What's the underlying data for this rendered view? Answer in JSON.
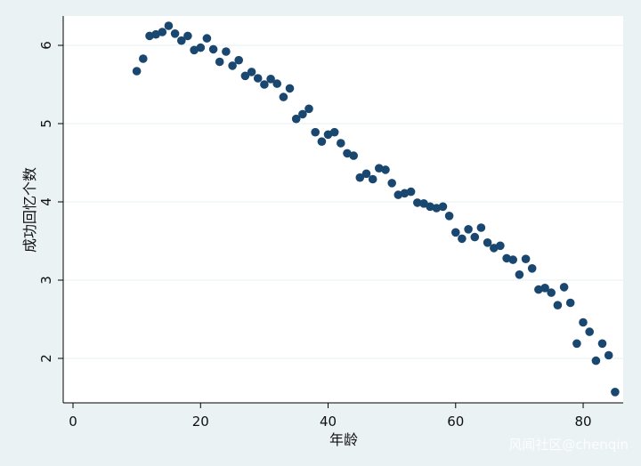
{
  "colors": {
    "background": "#eaf2f3",
    "plot_area": "#ffffff",
    "grid": "#eaf2f3",
    "marker": "#1a476f",
    "axis": "#000000"
  },
  "watermark": "风闻社区@chenqin",
  "chart_data": {
    "type": "scatter",
    "title": "",
    "xlabel": "年龄",
    "ylabel": "成功回忆个数",
    "xlim": [
      0,
      86
    ],
    "ylim": [
      1.5,
      6.4
    ],
    "x_ticks": [
      0,
      20,
      40,
      60,
      80
    ],
    "y_ticks": [
      2,
      3,
      4,
      5,
      6
    ],
    "grid": "horizontal",
    "legend": "none",
    "series": [
      {
        "x": [
          10,
          11,
          12,
          13,
          14,
          15,
          16,
          17,
          18,
          19,
          20,
          21,
          22,
          23,
          24,
          25,
          26,
          27,
          28,
          29,
          30,
          31,
          32,
          33,
          34,
          35,
          36,
          37,
          38,
          39,
          40,
          41,
          42,
          43,
          44,
          45,
          46,
          47,
          48,
          49,
          50,
          51,
          52,
          53,
          54,
          55,
          56,
          57,
          58,
          59,
          60,
          61,
          62,
          63,
          64,
          65,
          66,
          67,
          68,
          69,
          70,
          71,
          72,
          73,
          74,
          75,
          76,
          77,
          78,
          79,
          80,
          81,
          82,
          83,
          84,
          85
        ],
        "y": [
          5.67,
          5.83,
          6.12,
          6.14,
          6.17,
          6.25,
          6.15,
          6.06,
          6.12,
          5.94,
          5.97,
          6.09,
          5.95,
          5.79,
          5.92,
          5.74,
          5.81,
          5.61,
          5.66,
          5.58,
          5.5,
          5.57,
          5.51,
          5.34,
          5.45,
          5.06,
          5.12,
          5.19,
          4.89,
          4.77,
          4.86,
          4.89,
          4.75,
          4.62,
          4.59,
          4.31,
          4.36,
          4.29,
          4.43,
          4.41,
          4.24,
          4.09,
          4.11,
          4.13,
          3.99,
          3.98,
          3.94,
          3.92,
          3.94,
          3.82,
          3.61,
          3.53,
          3.65,
          3.55,
          3.67,
          3.48,
          3.41,
          3.44,
          3.28,
          3.26,
          3.07,
          3.27,
          3.15,
          2.88,
          2.9,
          2.84,
          2.68,
          2.91,
          2.71,
          2.19,
          2.46,
          2.34,
          1.97,
          2.19,
          2.04,
          1.57
        ]
      }
    ]
  }
}
